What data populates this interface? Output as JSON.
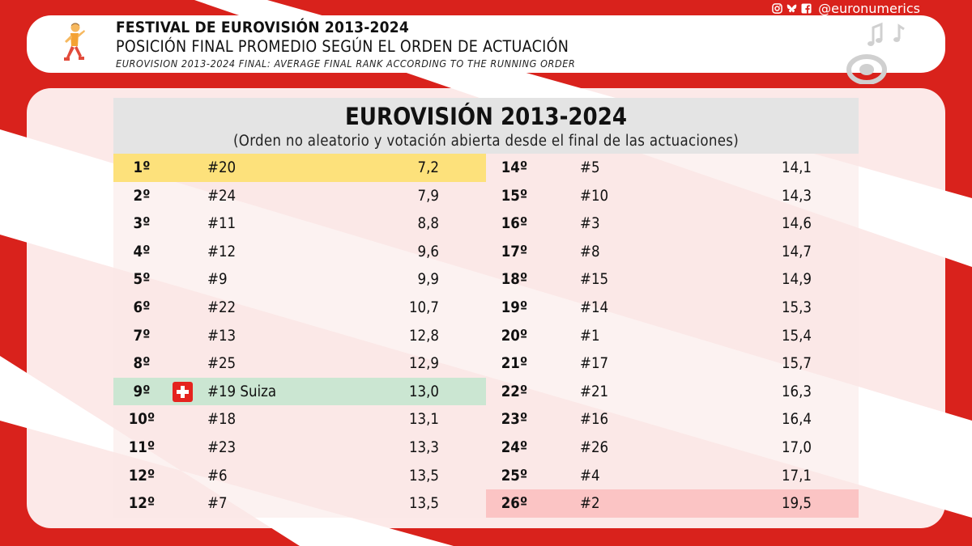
{
  "colors": {
    "background": "#d9221c",
    "highlight_first": "#fde17b",
    "highlight_switzerland": "#cbe6d2",
    "highlight_last": "#fbc4c4",
    "header_band": "#e4e4e4"
  },
  "social": {
    "icons": [
      "instagram-icon",
      "bluesky-icon",
      "facebook-icon"
    ],
    "handle": "@euronumerics"
  },
  "header": {
    "title": "FESTIVAL DE EUROVISIÓN 2013-2024",
    "subtitle": "POSICIÓN FINAL PROMEDIO SEGÚN EL ORDEN DE ACTUACIÓN",
    "english_subtitle": "EUROVISION 2013-2024 FINAL: AVERAGE FINAL RANK ACCORDING TO THE RUNNING ORDER"
  },
  "table": {
    "title": "EUROVISIÓN 2013-2024",
    "subtitle": "(Orden no aleatorio y votación abierta desde el final de las actuaciones)",
    "left": [
      {
        "rank": "1º",
        "order": "#20",
        "avg": "7,2",
        "highlight": "gold"
      },
      {
        "rank": "2º",
        "order": "#24",
        "avg": "7,9"
      },
      {
        "rank": "3º",
        "order": "#11",
        "avg": "8,8"
      },
      {
        "rank": "4º",
        "order": "#12",
        "avg": "9,6"
      },
      {
        "rank": "5º",
        "order": "#9",
        "avg": "9,9"
      },
      {
        "rank": "6º",
        "order": "#22",
        "avg": "10,7"
      },
      {
        "rank": "7º",
        "order": "#13",
        "avg": "12,8"
      },
      {
        "rank": "8º",
        "order": "#25",
        "avg": "12,9"
      },
      {
        "rank": "9º",
        "order": "#19 Suiza",
        "avg": "13,0",
        "highlight": "green",
        "flag": "switzerland-flag-icon"
      },
      {
        "rank": "10º",
        "order": "#18",
        "avg": "13,1"
      },
      {
        "rank": "11º",
        "order": "#23",
        "avg": "13,3"
      },
      {
        "rank": "12º",
        "order": "#6",
        "avg": "13,5"
      },
      {
        "rank": "12º",
        "order": "#7",
        "avg": "13,5"
      }
    ],
    "right": [
      {
        "rank": "14º",
        "order": "#5",
        "avg": "14,1"
      },
      {
        "rank": "15º",
        "order": "#10",
        "avg": "14,3"
      },
      {
        "rank": "16º",
        "order": "#3",
        "avg": "14,6"
      },
      {
        "rank": "17º",
        "order": "#8",
        "avg": "14,7"
      },
      {
        "rank": "18º",
        "order": "#15",
        "avg": "14,9"
      },
      {
        "rank": "19º",
        "order": "#14",
        "avg": "15,3"
      },
      {
        "rank": "20º",
        "order": "#1",
        "avg": "15,4"
      },
      {
        "rank": "21º",
        "order": "#17",
        "avg": "15,7"
      },
      {
        "rank": "22º",
        "order": "#21",
        "avg": "16,3"
      },
      {
        "rank": "23º",
        "order": "#16",
        "avg": "16,4"
      },
      {
        "rank": "24º",
        "order": "#26",
        "avg": "17,0"
      },
      {
        "rank": "25º",
        "order": "#4",
        "avg": "17,1"
      },
      {
        "rank": "26º",
        "order": "#2",
        "avg": "19,5",
        "highlight": "red"
      }
    ]
  }
}
